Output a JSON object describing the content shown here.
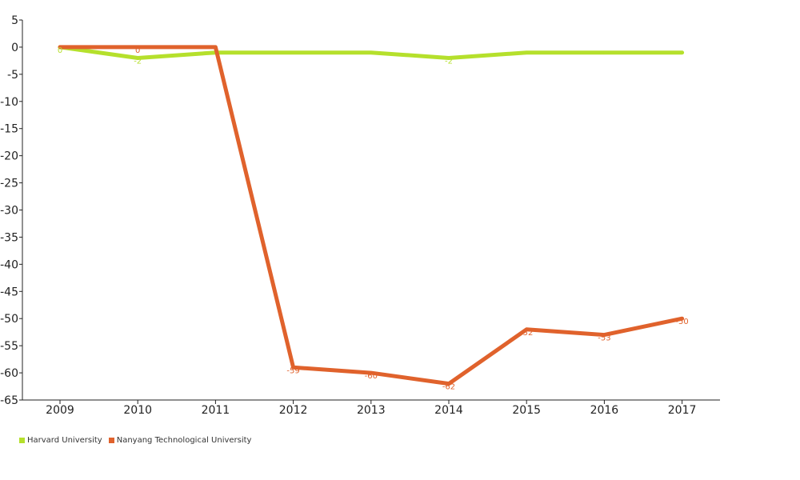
{
  "chart_data": {
    "type": "line",
    "title": "",
    "xlabel": "",
    "ylabel": "",
    "x": [
      "2009",
      "2010",
      "2011",
      "2012",
      "2013",
      "2014",
      "2015",
      "2016",
      "2017"
    ],
    "ylim": [
      -65,
      5
    ],
    "yticks": [
      5,
      0,
      -5,
      -10,
      -15,
      -20,
      -25,
      -30,
      -35,
      -40,
      -45,
      -50,
      -55,
      -60,
      -65
    ],
    "grid": false,
    "legend_position": "bottom-left",
    "series": [
      {
        "name": "Harvard University",
        "color": "#b5e02c",
        "values": [
          0,
          -2,
          -1,
          -1,
          -1,
          -2,
          -1,
          -1,
          -1
        ],
        "labels": [
          "0",
          "-2",
          "",
          "",
          "",
          "-2",
          "",
          "",
          ""
        ]
      },
      {
        "name": "Nanyang Technological University",
        "color": "#e0622c",
        "values": [
          0,
          0,
          0,
          -59,
          -60,
          -62,
          -52,
          -53,
          -50
        ],
        "labels": [
          "",
          "0",
          "",
          "-59",
          "-60",
          "-62",
          "-52",
          "-53",
          "-50"
        ]
      }
    ]
  }
}
